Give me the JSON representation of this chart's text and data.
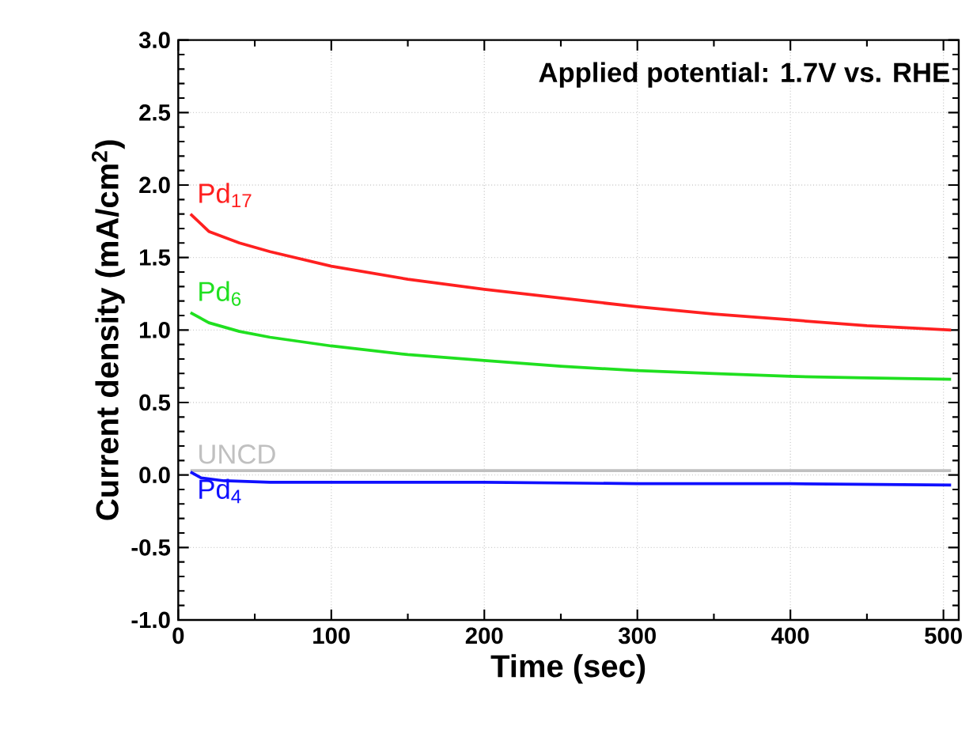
{
  "chart_data": {
    "type": "line",
    "xlabel": "Time (sec)",
    "ylabel": "Current density (mA/cm$^{2}$)",
    "annotations": [
      "Applied potential: 1.7V vs. RHE"
    ],
    "xlim": [
      0,
      510
    ],
    "ylim": [
      -1.0,
      3.0
    ],
    "xticks": [
      0,
      100,
      200,
      300,
      400,
      500
    ],
    "yticks": [
      {
        "value": -1.0,
        "label": "-1.0"
      },
      {
        "value": -0.5,
        "label": "-0.5"
      },
      {
        "value": 0,
        "label": "0.0"
      },
      {
        "value": 0.5,
        "label": "0.5"
      },
      {
        "value": 1.0,
        "label": "1.0"
      },
      {
        "value": 1.5,
        "label": "1.5"
      },
      {
        "value": 2.0,
        "label": "2.0"
      },
      {
        "value": 2.5,
        "label": "2.5"
      },
      {
        "value": 3.0,
        "label": "3.0"
      }
    ],
    "grid": true,
    "marker": "none",
    "line_style": "solid",
    "series": [
      {
        "name": "Pd$_{17}$",
        "color": "#ff2020",
        "x": [
          8,
          20,
          40,
          60,
          100,
          150,
          200,
          250,
          300,
          350,
          400,
          450,
          505
        ],
        "values": [
          1.8,
          1.68,
          1.6,
          1.54,
          1.44,
          1.35,
          1.28,
          1.22,
          1.16,
          1.11,
          1.07,
          1.03,
          1.0
        ]
      },
      {
        "name": "Pd$_{6}$",
        "color": "#20e020",
        "x": [
          8,
          20,
          40,
          60,
          100,
          150,
          200,
          250,
          300,
          350,
          400,
          450,
          505
        ],
        "values": [
          1.12,
          1.05,
          0.99,
          0.95,
          0.89,
          0.83,
          0.79,
          0.75,
          0.72,
          0.7,
          0.68,
          0.67,
          0.66
        ]
      },
      {
        "name": "UNCD",
        "color": "#c0c0c0",
        "x": [
          8,
          100,
          200,
          300,
          400,
          505
        ],
        "values": [
          0.03,
          0.03,
          0.03,
          0.03,
          0.03,
          0.03
        ]
      },
      {
        "name": "Pd$_{4}$",
        "color": "#1010ff",
        "x": [
          8,
          15,
          30,
          60,
          100,
          200,
          300,
          400,
          505
        ],
        "values": [
          0.02,
          -0.02,
          -0.04,
          -0.05,
          -0.05,
          -0.05,
          -0.06,
          -0.06,
          -0.07
        ]
      }
    ]
  }
}
